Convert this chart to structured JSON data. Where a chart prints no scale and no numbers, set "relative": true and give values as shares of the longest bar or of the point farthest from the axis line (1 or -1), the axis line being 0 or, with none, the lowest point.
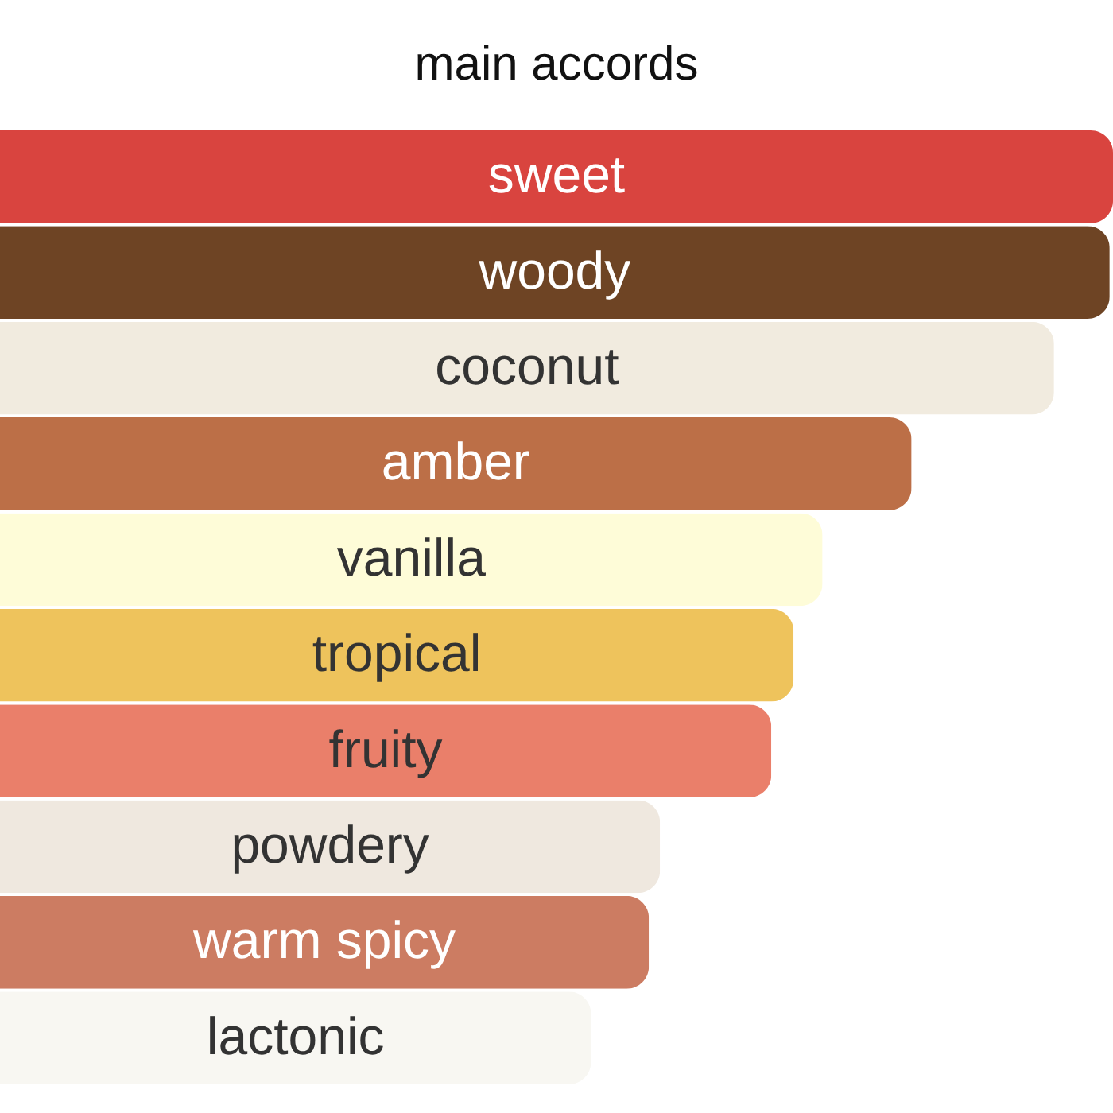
{
  "chart_data": {
    "type": "bar",
    "orientation": "horizontal",
    "relative": true,
    "title": "main accords",
    "categories": [
      "sweet",
      "woody",
      "coconut",
      "amber",
      "vanilla",
      "tropical",
      "fruity",
      "powdery",
      "warm spicy",
      "lactonic"
    ],
    "values": [
      1,
      0.997,
      0.947,
      0.819,
      0.739,
      0.713,
      0.693,
      0.593,
      0.583,
      0.531
    ],
    "colors": [
      "#d9443f",
      "#6e4424",
      "#f1ebdf",
      "#bc6f47",
      "#fefcd8",
      "#eec35c",
      "#ea7f6a",
      "#efe8df",
      "#cc7c62",
      "#f8f7f2"
    ]
  }
}
